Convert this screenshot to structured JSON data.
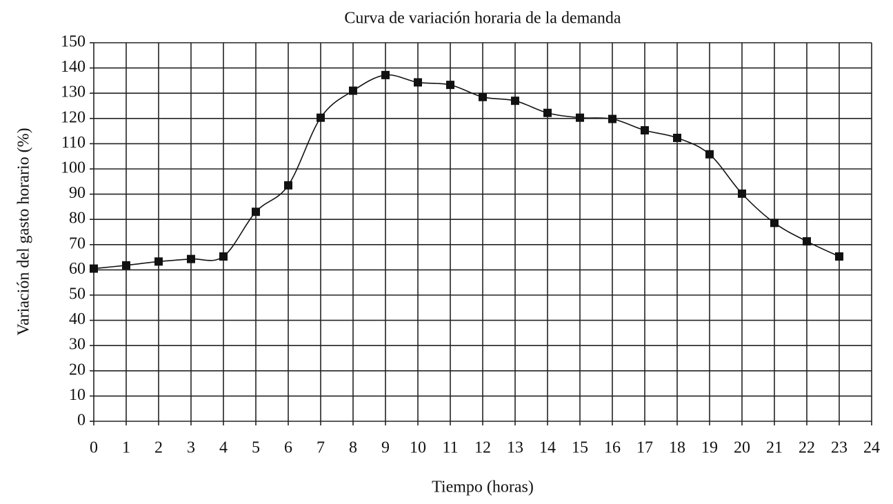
{
  "chart_data": {
    "type": "line",
    "title": "Curva de variación horaria de la demanda",
    "x_label": "Tiempo (horas)",
    "y_label": "Variación del gasto horario (%)",
    "x": [
      0,
      1,
      2,
      3,
      4,
      5,
      6,
      7,
      8,
      9,
      10,
      11,
      12,
      13,
      14,
      15,
      16,
      17,
      18,
      19,
      20,
      21,
      22,
      23
    ],
    "values": [
      60.5,
      61.8,
      63.3,
      64.3,
      65.3,
      83,
      93.5,
      120.3,
      131,
      137.2,
      134.3,
      133.3,
      128.5,
      127,
      122.2,
      120.3,
      119.8,
      115.3,
      112.3,
      105.8,
      90.2,
      78.6,
      71.3,
      65.3
    ],
    "color": "#111111",
    "xlim": [
      0,
      24
    ],
    "xticks": [
      0,
      1,
      2,
      3,
      4,
      5,
      6,
      7,
      8,
      9,
      10,
      11,
      12,
      13,
      14,
      15,
      16,
      17,
      18,
      19,
      20,
      21,
      22,
      23,
      24
    ],
    "ylim": [
      0,
      150
    ],
    "yticks": [
      0,
      10,
      20,
      30,
      40,
      50,
      60,
      70,
      80,
      90,
      100,
      110,
      120,
      130,
      140,
      150
    ],
    "grid": true
  }
}
